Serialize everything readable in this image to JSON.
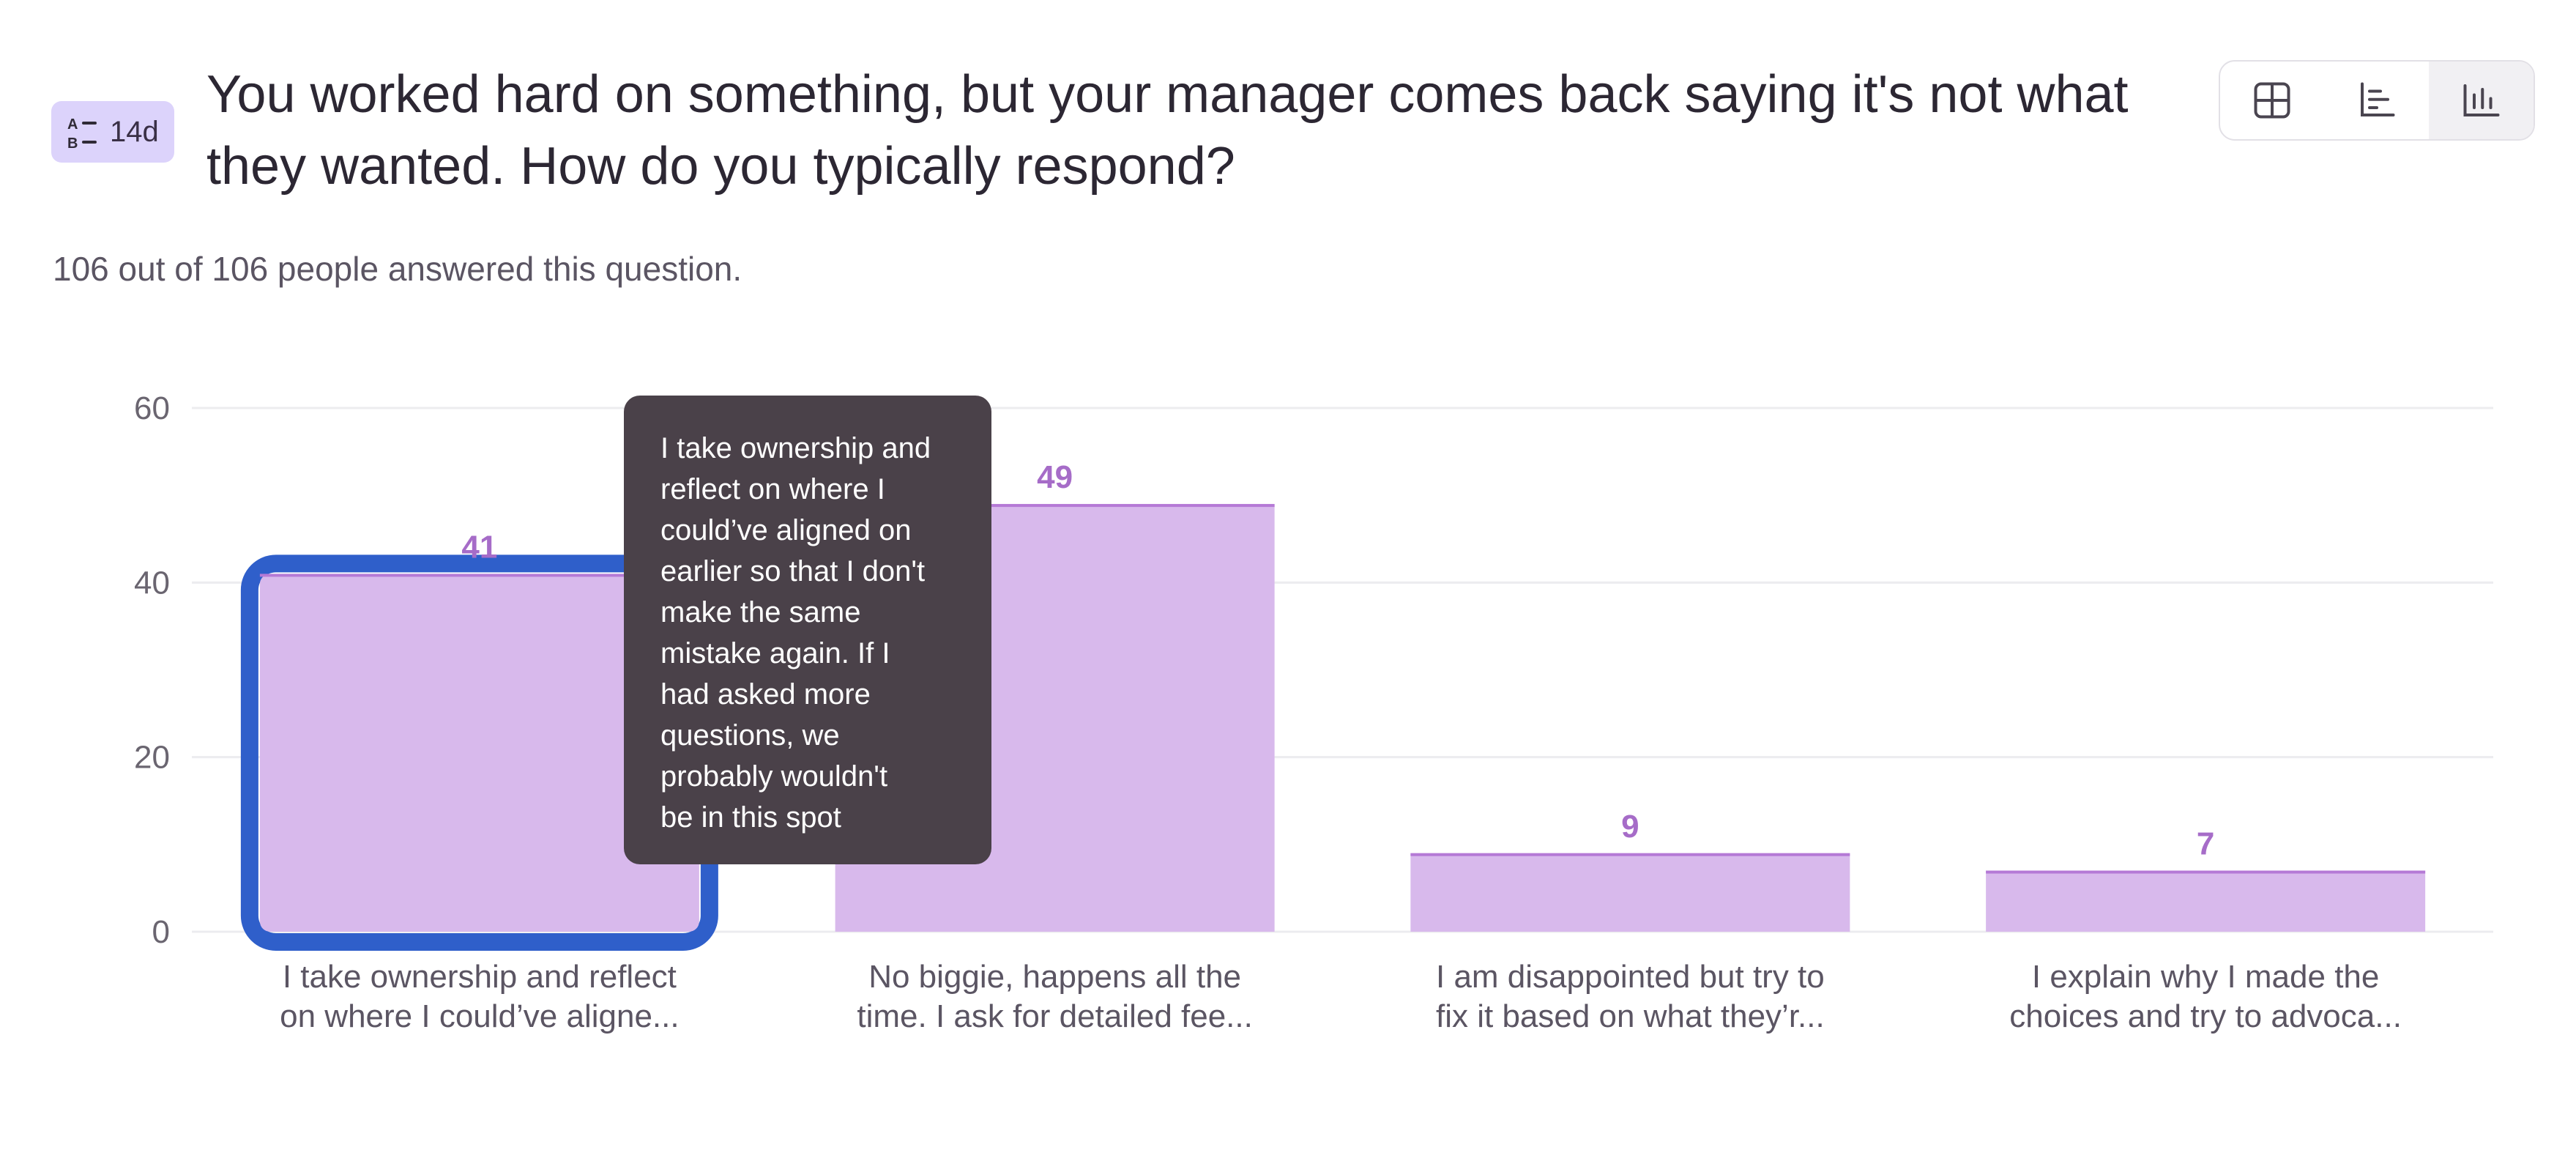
{
  "header": {
    "badge_text": "14d",
    "badge_icon": "ab-choice-icon",
    "question": "You worked hard on something, but your manager comes back saying it's not what they wanted. How do you typically respond?",
    "answered": "106 out of 106 people answered this question."
  },
  "view_toggle": [
    {
      "name": "table-view-button",
      "icon": "table-icon",
      "active": false
    },
    {
      "name": "horizontal-bar-view-button",
      "icon": "horizontal-bar-chart-icon",
      "active": false
    },
    {
      "name": "vertical-bar-view-button",
      "icon": "vertical-bar-chart-icon",
      "active": true
    }
  ],
  "colors": {
    "bar_fill": "#d8b9ec",
    "bar_top": "#b57ad6",
    "value_label": "#a66cc8",
    "selected_outline": "#2f5fca",
    "grid": "#ececef",
    "axis_text": "#6a6570",
    "category_text": "#5b5563"
  },
  "chart_data": {
    "type": "bar",
    "categories": [
      "I take ownership and reflect on where I could’ve aligne...",
      "No biggie, happens all the time. I ask for detailed fee...",
      "I am disappointed but try to fix it based on what they’r...",
      "I explain why I made the choices and try to advoca..."
    ],
    "category_lines": [
      [
        "I take ownership and reflect",
        "on where I could’ve aligne..."
      ],
      [
        "No biggie, happens all the",
        "time. I ask for detailed fee..."
      ],
      [
        "I am disappointed but try to",
        "fix it based on what they’r..."
      ],
      [
        "I explain why I made the",
        "choices and try to advoca..."
      ]
    ],
    "values": [
      41,
      49,
      9,
      7
    ],
    "ylim": [
      0,
      60
    ],
    "yticks": [
      0,
      20,
      40,
      60
    ],
    "grid": true,
    "selected_index": 0
  },
  "tooltip": {
    "lines": [
      "I take ownership and",
      "reflect on where I",
      "could’ve aligned on",
      "earlier so that I don't",
      "make the same",
      "mistake again. If I",
      "had asked more",
      "questions, we",
      "probably wouldn't",
      "be in this spot"
    ]
  }
}
